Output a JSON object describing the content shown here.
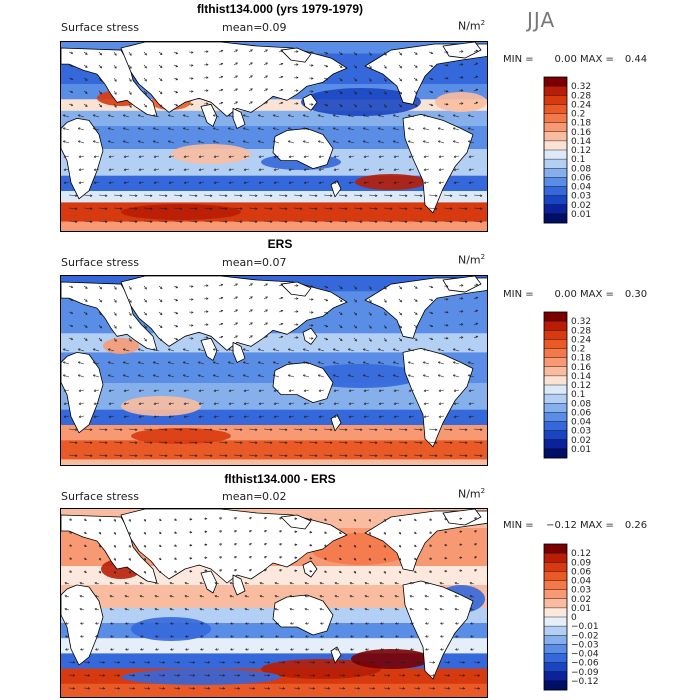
{
  "season": "JJA",
  "panels": [
    {
      "title": "flthist134.000 (yrs 1979-1979)",
      "field_label": "Surface stress",
      "mean_label": "mean=",
      "mean_value": "0.09",
      "units_base": "N/m",
      "units_exp": "2",
      "min_label": "MIN =",
      "min_value": "0.00",
      "max_label": "MAX =",
      "max_value": "0.44",
      "colorbar_labels": [
        "0.32",
        "0.28",
        "0.24",
        "0.2",
        "0.18",
        "0.16",
        "0.14",
        "0.12",
        "0.1",
        "0.08",
        "0.06",
        "0.04",
        "0.03",
        "0.02",
        "0.01"
      ]
    },
    {
      "title": "ERS",
      "field_label": "Surface stress",
      "mean_label": "mean=",
      "mean_value": "0.07",
      "units_base": "N/m",
      "units_exp": "2",
      "min_label": "MIN =",
      "min_value": "0.00",
      "max_label": "MAX =",
      "max_value": "0.30",
      "colorbar_labels": [
        "0.32",
        "0.28",
        "0.24",
        "0.2",
        "0.18",
        "0.16",
        "0.14",
        "0.12",
        "0.1",
        "0.08",
        "0.06",
        "0.04",
        "0.03",
        "0.02",
        "0.01"
      ]
    },
    {
      "title": "flthist134.000 - ERS",
      "field_label": "Surface stress",
      "mean_label": "mean=",
      "mean_value": "0.02",
      "units_base": "N/m",
      "units_exp": "2",
      "min_label": "MIN =",
      "min_value": "−0.12",
      "max_label": "MAX =",
      "max_value": "0.26",
      "colorbar_labels": [
        "0.12",
        "0.09",
        "0.06",
        "0.04",
        "0.03",
        "0.02",
        "0.01",
        "0",
        "−0.01",
        "−0.02",
        "−0.03",
        "−0.04",
        "−0.06",
        "−0.09",
        "−0.12"
      ]
    }
  ],
  "colors": {
    "seq": [
      "#7a0000",
      "#b81e06",
      "#d83a10",
      "#ea5a26",
      "#f3794b",
      "#f79a73",
      "#f9bca0",
      "#fbe3d3",
      "#dce9f8",
      "#b3cff3",
      "#85b0ec",
      "#5a8ee6",
      "#3568da",
      "#1a45c2",
      "#0c229a",
      "#000f66"
    ],
    "div": [
      "#7a0000",
      "#b81e06",
      "#d83a10",
      "#ea5a26",
      "#f3794b",
      "#f79a73",
      "#f9bca0",
      "#fce8dc",
      "#e6eefa",
      "#b3cff3",
      "#85b0ec",
      "#5a8ee6",
      "#3568da",
      "#1a45c2",
      "#0c229a",
      "#000f66"
    ],
    "land": "#ffffff"
  },
  "chart_data": [
    {
      "type": "heatmap",
      "title": "flthist134.000 (yrs 1979-1979)",
      "variable": "Surface stress",
      "units": "N/m2",
      "season": "JJA",
      "mean": 0.09,
      "min": 0.0,
      "max": 0.44,
      "contour_levels": [
        0.01,
        0.02,
        0.03,
        0.04,
        0.06,
        0.08,
        0.1,
        0.12,
        0.14,
        0.16,
        0.18,
        0.2,
        0.24,
        0.28,
        0.32
      ],
      "vector_overlay": "wind stress arrows"
    },
    {
      "type": "heatmap",
      "title": "ERS",
      "variable": "Surface stress",
      "units": "N/m2",
      "season": "JJA",
      "mean": 0.07,
      "min": 0.0,
      "max": 0.3,
      "contour_levels": [
        0.01,
        0.02,
        0.03,
        0.04,
        0.06,
        0.08,
        0.1,
        0.12,
        0.14,
        0.16,
        0.18,
        0.2,
        0.24,
        0.28,
        0.32
      ],
      "vector_overlay": "wind stress arrows"
    },
    {
      "type": "heatmap",
      "title": "flthist134.000 - ERS",
      "variable": "Surface stress",
      "units": "N/m2",
      "season": "JJA",
      "mean": 0.02,
      "min": -0.12,
      "max": 0.26,
      "contour_levels": [
        -0.12,
        -0.09,
        -0.06,
        -0.04,
        -0.03,
        -0.02,
        -0.01,
        0,
        0.01,
        0.02,
        0.03,
        0.04,
        0.06,
        0.09,
        0.12
      ],
      "vector_overlay": "wind stress difference arrows"
    }
  ]
}
